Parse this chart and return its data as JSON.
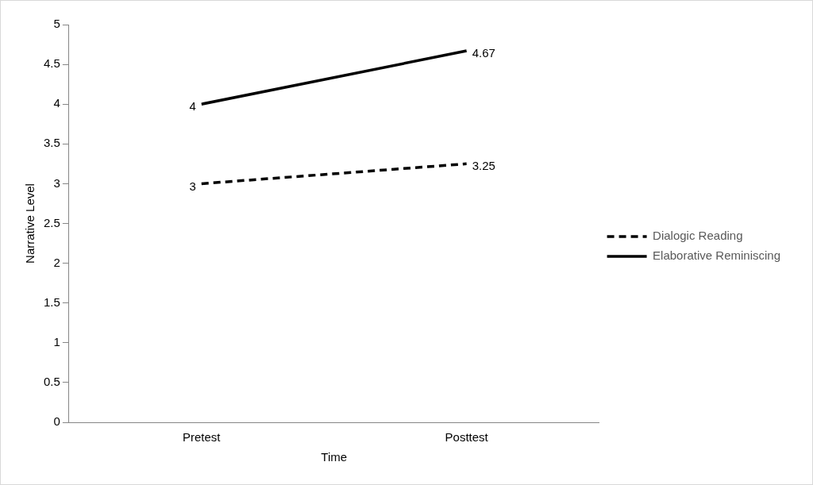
{
  "chart_data": {
    "type": "line",
    "xlabel": "Time",
    "ylabel": "Narrative Level",
    "categories": [
      "Pretest",
      "Posttest"
    ],
    "series": [
      {
        "name": "Dialogic Reading",
        "color": "#000000",
        "values": [
          3,
          3.25
        ],
        "line_style": "dashed"
      },
      {
        "name": "Elaborative Reminiscing",
        "color": "#000000",
        "values": [
          4,
          4.67
        ],
        "line_style": "solid"
      }
    ],
    "ylim": [
      0,
      5
    ],
    "yticks": [
      0,
      0.5,
      1,
      1.5,
      2,
      2.5,
      3,
      3.5,
      4,
      4.5,
      5
    ],
    "grid": false,
    "legend": "right",
    "marker": "none",
    "data_labels": true
  }
}
